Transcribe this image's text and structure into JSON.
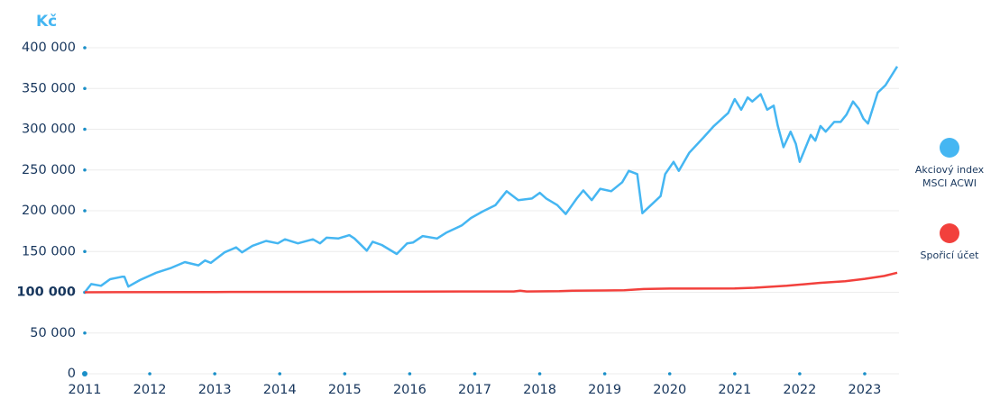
{
  "chart_data": {
    "type": "line",
    "y_unit": "Kč",
    "xlim": [
      2011,
      2023.5
    ],
    "xticks": [
      2011,
      2012,
      2013,
      2014,
      2015,
      2016,
      2017,
      2018,
      2019,
      2020,
      2021,
      2022,
      2023
    ],
    "ylim": [
      0,
      400000
    ],
    "yticks": [
      0,
      {
        "value": 50000,
        "label": "50 000"
      },
      {
        "value": 100000,
        "label": "100 000"
      },
      {
        "value": 150000,
        "label": "150 000"
      },
      {
        "value": 200000,
        "label": "200 000"
      },
      {
        "value": 250000,
        "label": "250 000"
      },
      {
        "value": 300000,
        "label": "300 000"
      },
      {
        "value": 350000,
        "label": "350 000"
      },
      {
        "value": 400000,
        "label": "400 000"
      }
    ],
    "grid": true,
    "legend": "right",
    "series": [
      {
        "name": "Akciový index MSCI ACWI",
        "color": "#45b6f2",
        "x": [
          2011.0,
          2011.1,
          2011.25,
          2011.39,
          2011.57,
          2011.61,
          2011.67,
          2011.85,
          2012.1,
          2012.33,
          2012.54,
          2012.75,
          2012.85,
          2012.94,
          2013.15,
          2013.33,
          2013.42,
          2013.58,
          2013.79,
          2013.97,
          2014.08,
          2014.28,
          2014.51,
          2014.62,
          2014.72,
          2014.9,
          2015.07,
          2015.15,
          2015.34,
          2015.43,
          2015.57,
          2015.8,
          2015.96,
          2016.05,
          2016.2,
          2016.42,
          2016.56,
          2016.8,
          2016.94,
          2017.12,
          2017.32,
          2017.49,
          2017.67,
          2017.88,
          2018.0,
          2018.1,
          2018.27,
          2018.4,
          2018.57,
          2018.67,
          2018.8,
          2018.93,
          2019.1,
          2019.27,
          2019.37,
          2019.5,
          2019.58,
          2019.86,
          2019.93,
          2020.06,
          2020.14,
          2020.3,
          2020.52,
          2020.68,
          2020.9,
          2021.0,
          2021.1,
          2021.2,
          2021.27,
          2021.4,
          2021.5,
          2021.6,
          2021.66,
          2021.75,
          2021.86,
          2021.94,
          2022.0,
          2022.17,
          2022.24,
          2022.32,
          2022.4,
          2022.53,
          2022.63,
          2022.72,
          2022.82,
          2022.91,
          2022.98,
          2023.05,
          2023.2,
          2023.32,
          2023.5
        ],
        "values": [
          100000,
          110000,
          108000,
          116000,
          119000,
          119000,
          107000,
          115000,
          124000,
          130000,
          137000,
          133000,
          139000,
          136000,
          149000,
          155000,
          149000,
          157000,
          163000,
          160000,
          165000,
          160000,
          165000,
          160000,
          167000,
          166000,
          170000,
          166000,
          151000,
          162000,
          158000,
          147000,
          160000,
          161000,
          169000,
          166000,
          173000,
          182000,
          191000,
          199000,
          207000,
          224000,
          213000,
          215000,
          222000,
          215000,
          207000,
          196000,
          215000,
          225000,
          213000,
          227000,
          224000,
          235000,
          249000,
          245000,
          197000,
          218000,
          245000,
          260000,
          249000,
          271000,
          290000,
          304000,
          320000,
          337000,
          324000,
          339000,
          334000,
          343000,
          324000,
          329000,
          305000,
          278000,
          297000,
          282000,
          260000,
          293000,
          286000,
          304000,
          297000,
          309000,
          309000,
          318000,
          334000,
          325000,
          313000,
          307000,
          345000,
          354000,
          377000
        ]
      },
      {
        "name": "Spořicí účet",
        "color": "#f2403c",
        "x": [
          2011.0,
          2013.0,
          2015.0,
          2017.0,
          2017.6,
          2017.7,
          2017.8,
          2018.3,
          2018.5,
          2019.0,
          2019.3,
          2019.6,
          2020.0,
          2021.0,
          2021.3,
          2021.8,
          2022.3,
          2022.7,
          2023.0,
          2023.3,
          2023.5
        ],
        "values": [
          100000,
          100300,
          100600,
          101000,
          101000,
          102000,
          101000,
          101300,
          102000,
          102200,
          102500,
          104000,
          104500,
          104800,
          105500,
          108000,
          111500,
          113500,
          116500,
          120000,
          124000
        ]
      }
    ]
  }
}
